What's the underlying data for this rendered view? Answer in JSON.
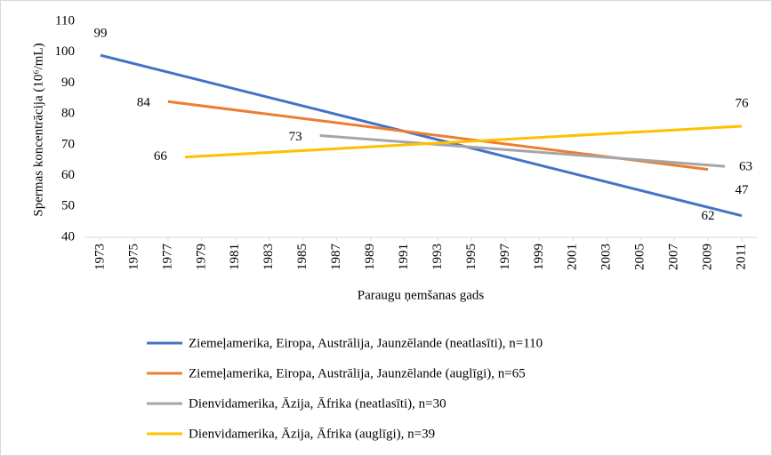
{
  "chart_data": {
    "type": "line",
    "ylabel": "Spermas koncentrācija (10⁶/mL)",
    "xlabel": "Paraugu ņemšanas gads",
    "xlim": [
      1973,
      2011
    ],
    "xticks": [
      1973,
      1975,
      1977,
      1979,
      1981,
      1983,
      1985,
      1987,
      1989,
      1991,
      1993,
      1995,
      1997,
      1999,
      2001,
      2003,
      2005,
      2007,
      2009,
      2011
    ],
    "ylim": [
      40,
      110
    ],
    "yticks": [
      40,
      50,
      60,
      70,
      80,
      90,
      100,
      110
    ],
    "grid": false,
    "legend": "bottom",
    "series": [
      {
        "name": "Ziemeļamerika, Eiropa, Austrālija, Jaunzēlande (neatlasīti), n=110",
        "color": "#4472c4",
        "x": [
          1973,
          2011
        ],
        "values": [
          99,
          47
        ]
      },
      {
        "name": "Ziemeļamerika, Eiropa, Austrālija, Jaunzēlande (auglīgi), n=65",
        "color": "#ed7d31",
        "x": [
          1977,
          2009
        ],
        "values": [
          84,
          62
        ]
      },
      {
        "name": "Dienvidamerika, Āzija, Āfrika (neatlasīti), n=30",
        "color": "#a5a5a5",
        "x": [
          1986,
          2010
        ],
        "values": [
          73,
          63
        ]
      },
      {
        "name": "Dienvidamerika, Āzija, Āfrika (auglīgi), n=39",
        "color": "#ffc000",
        "x": [
          1978,
          2011
        ],
        "values": [
          66,
          76
        ]
      }
    ]
  }
}
